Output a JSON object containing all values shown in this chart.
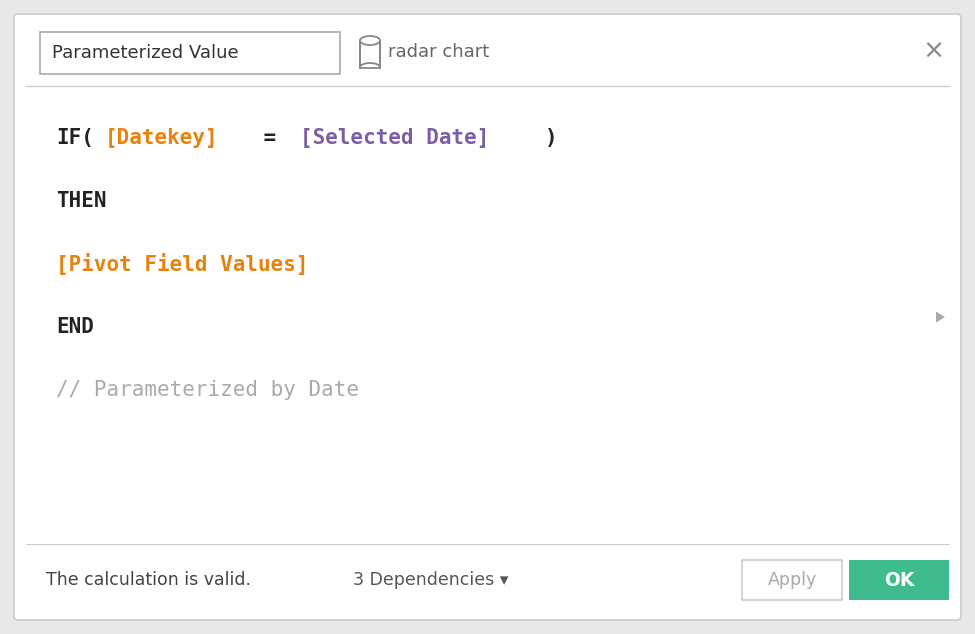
{
  "bg_color": "#ffffff",
  "border_color": "#cccccc",
  "outer_bg": "#e8e8e8",
  "title_input_text": "Parameterized Value",
  "tab_text": "radar chart",
  "close_x": "×",
  "divider_color": "#cccccc",
  "line1_parts": [
    {
      "text": "IF(",
      "color": "#222222",
      "bold": true
    },
    {
      "text": "[Datekey]",
      "color": "#e8820c",
      "bold": true
    },
    {
      "text": " = ",
      "color": "#222222",
      "bold": true
    },
    {
      "text": "[Selected Date]",
      "color": "#7b5ea7",
      "bold": true
    },
    {
      "text": ")",
      "color": "#222222",
      "bold": true
    }
  ],
  "line2_parts": [
    {
      "text": "THEN",
      "color": "#222222",
      "bold": true
    }
  ],
  "line3_parts": [
    {
      "text": "[Pivot Field Values]",
      "color": "#e8820c",
      "bold": true
    }
  ],
  "line4_parts": [
    {
      "text": "END",
      "color": "#222222",
      "bold": true
    }
  ],
  "line5_parts": [
    {
      "text": "// Parameterized by Date",
      "color": "#aaaaaa",
      "bold": false
    }
  ],
  "footer_text": "The calculation is valid.",
  "footer_color": "#444444",
  "deps_text": "3 Dependencies ▾",
  "apply_text": "Apply",
  "ok_text": "OK",
  "ok_bg": "#3ebc8e",
  "ok_text_color": "#ffffff",
  "apply_border": "#cccccc",
  "apply_text_color": "#aaaaaa",
  "code_fontsize": 15,
  "header_fontsize": 13,
  "footer_fontsize": 12.5
}
